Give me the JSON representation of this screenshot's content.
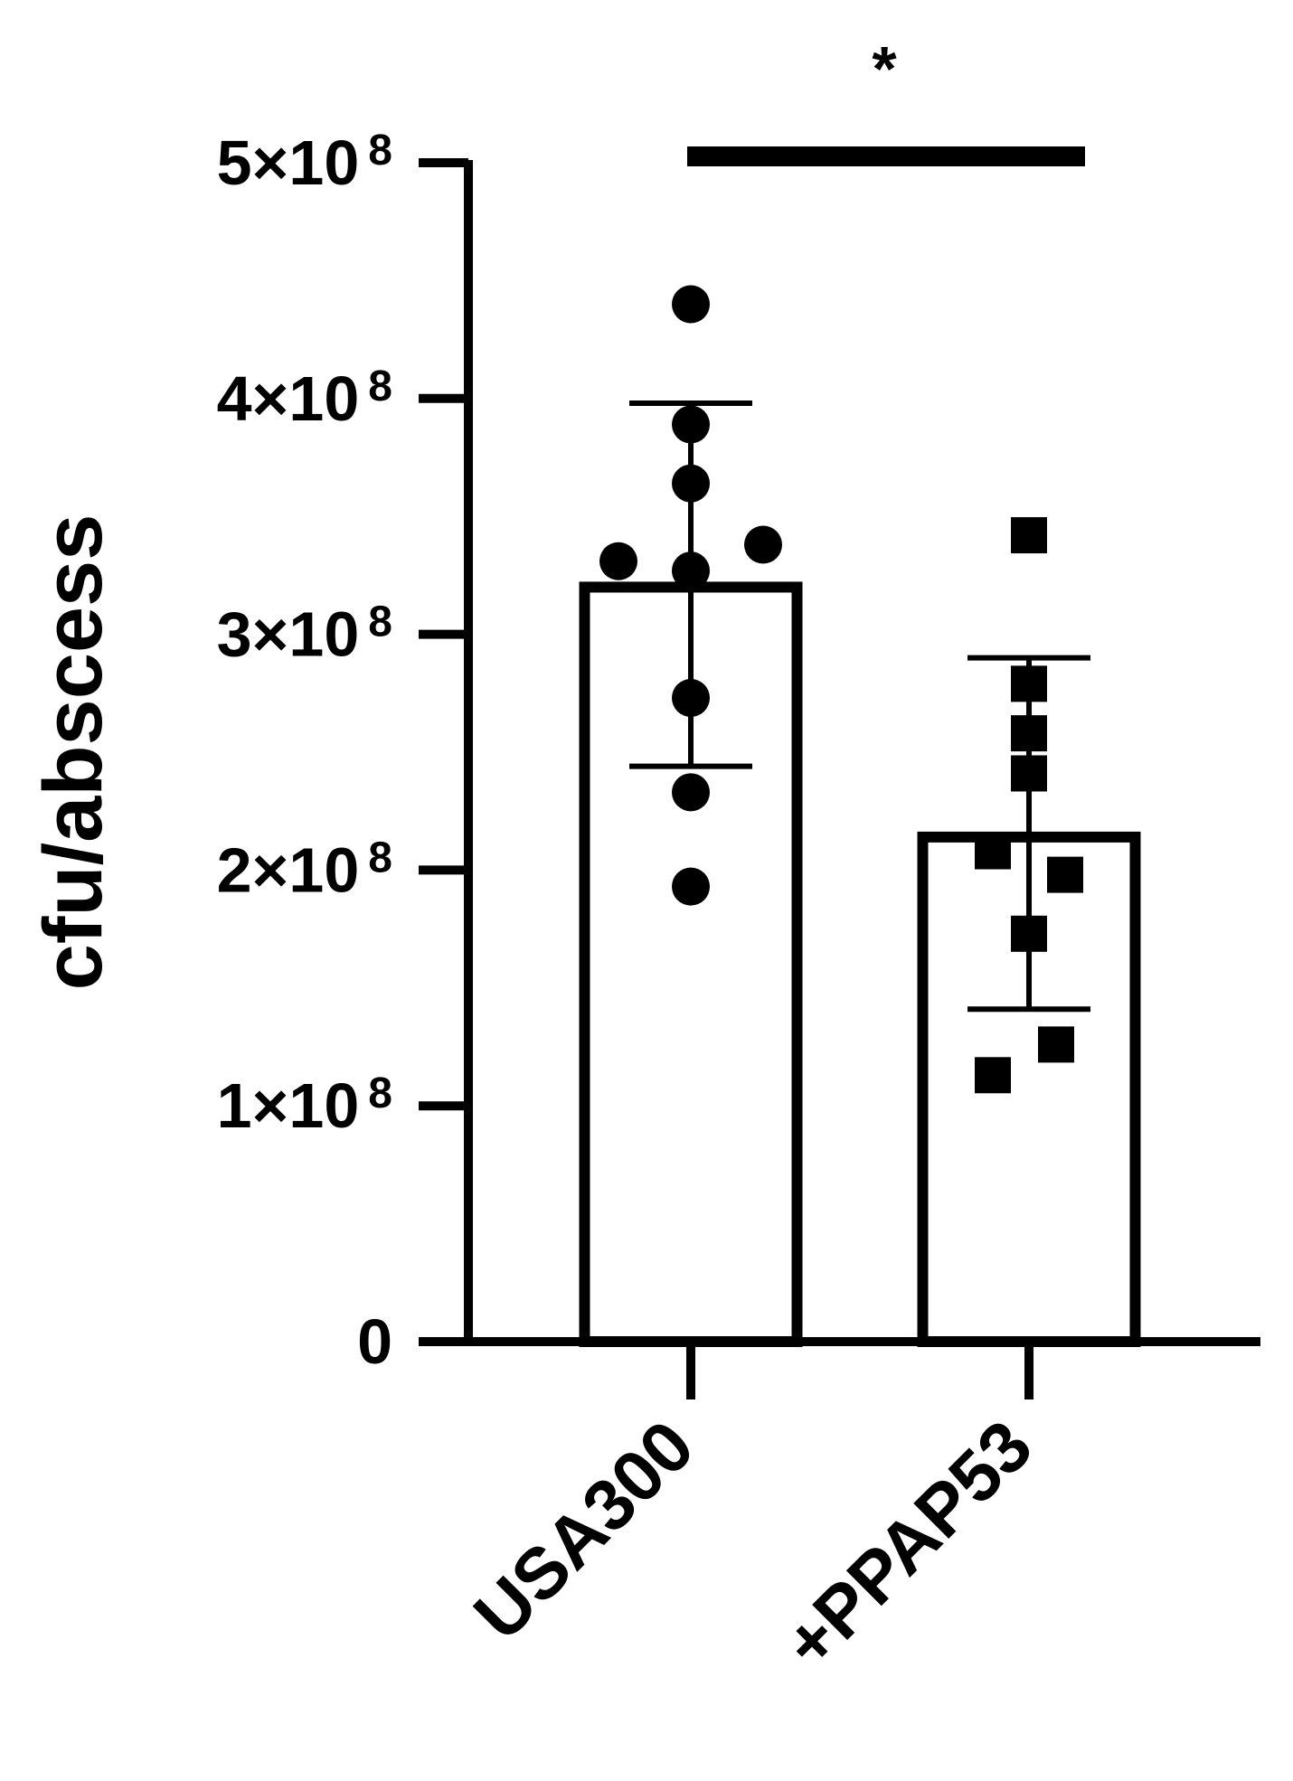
{
  "chart_data": {
    "type": "bar",
    "title": "",
    "xlabel": "",
    "ylabel": "cfu/abscess",
    "ylim": [
      0,
      500000000
    ],
    "yticks": [
      {
        "value": 0,
        "label": "0",
        "exp": ""
      },
      {
        "value": 100000000,
        "label": "1×10",
        "exp": "8"
      },
      {
        "value": 200000000,
        "label": "2×10",
        "exp": "8"
      },
      {
        "value": 300000000,
        "label": "3×10",
        "exp": "8"
      },
      {
        "value": 400000000,
        "label": "4×10",
        "exp": "8"
      },
      {
        "value": 500000000,
        "label": "5×10",
        "exp": "8"
      }
    ],
    "categories": [
      "USA300",
      "+PPAP53"
    ],
    "bars": [
      {
        "category": "USA300",
        "mean": 320000000,
        "sd_low": 244000000,
        "sd_high": 398000000,
        "marker": "circle",
        "points": [
          440000000,
          389000000,
          364000000,
          331000000,
          327000000,
          338000000,
          273000000,
          233000000,
          193000000
        ]
      },
      {
        "category": "+PPAP53",
        "mean": 214000000,
        "sd_low": 141000000,
        "sd_high": 290000000,
        "marker": "square",
        "points": [
          342000000,
          279000000,
          258000000,
          241000000,
          208000000,
          198000000,
          173000000,
          126000000,
          113000000
        ]
      }
    ],
    "significance": {
      "label": "*",
      "from": "USA300",
      "to": "+PPAP53"
    },
    "colors": {
      "stroke": "#000000",
      "bar_fill": "#ffffff",
      "marker": "#000000"
    },
    "grid": false,
    "legend": "none"
  }
}
